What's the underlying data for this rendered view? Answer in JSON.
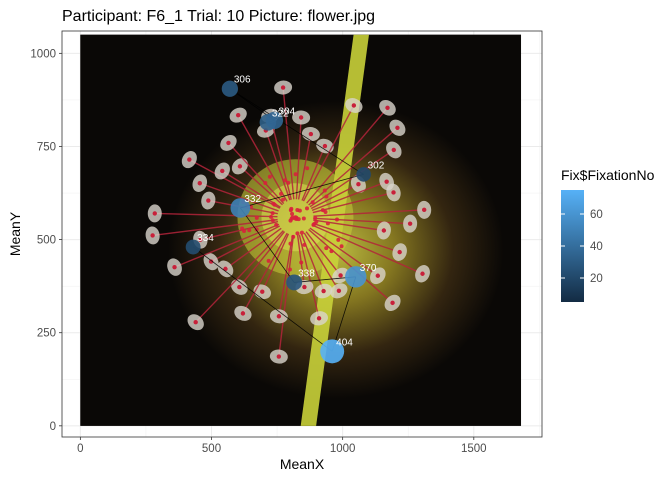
{
  "chart_data": {
    "type": "scatter",
    "title": "Participant: F6_1 Trial: 10 Picture: flower.jpg",
    "xlabel": "MeanX",
    "ylabel": "MeanY",
    "xlim": [
      -70,
      1760
    ],
    "ylim": [
      -30,
      1060
    ],
    "xticks": [
      0,
      500,
      1000,
      1500
    ],
    "yticks": [
      0,
      250,
      500,
      750,
      1000
    ],
    "grid": true,
    "background_image": {
      "x": [
        0,
        1680
      ],
      "y": [
        0,
        1050
      ],
      "name": "flower.jpg"
    },
    "legend": {
      "title": "Fix$FixationNo",
      "placement": "right",
      "range": [
        5,
        75
      ],
      "ticks": [
        20,
        40,
        60
      ],
      "ticks_low": [
        20
      ],
      "low_tick": 20,
      "color_low": "#132B43",
      "color_high": "#56B1F7"
    },
    "legend_tick_labels": [
      "60",
      "40",
      "20"
    ],
    "points": [
      {
        "x": 570,
        "y": 905,
        "fix": 30,
        "label": "306"
      },
      {
        "x": 715,
        "y": 815,
        "fix": 32,
        "label": "322"
      },
      {
        "x": 740,
        "y": 820,
        "fix": 36,
        "label": "304"
      },
      {
        "x": 1080,
        "y": 675,
        "fix": 20,
        "label": "302"
      },
      {
        "x": 610,
        "y": 585,
        "fix": 50,
        "label": "332"
      },
      {
        "x": 430,
        "y": 480,
        "fix": 22,
        "label": "334"
      },
      {
        "x": 815,
        "y": 385,
        "fix": 28,
        "label": "338"
      },
      {
        "x": 1050,
        "y": 400,
        "fix": 60,
        "label": "370"
      },
      {
        "x": 960,
        "y": 200,
        "fix": 75,
        "label": "404"
      }
    ],
    "path_order": [
      1,
      2,
      0,
      3,
      4,
      6,
      7,
      8,
      5
    ]
  }
}
